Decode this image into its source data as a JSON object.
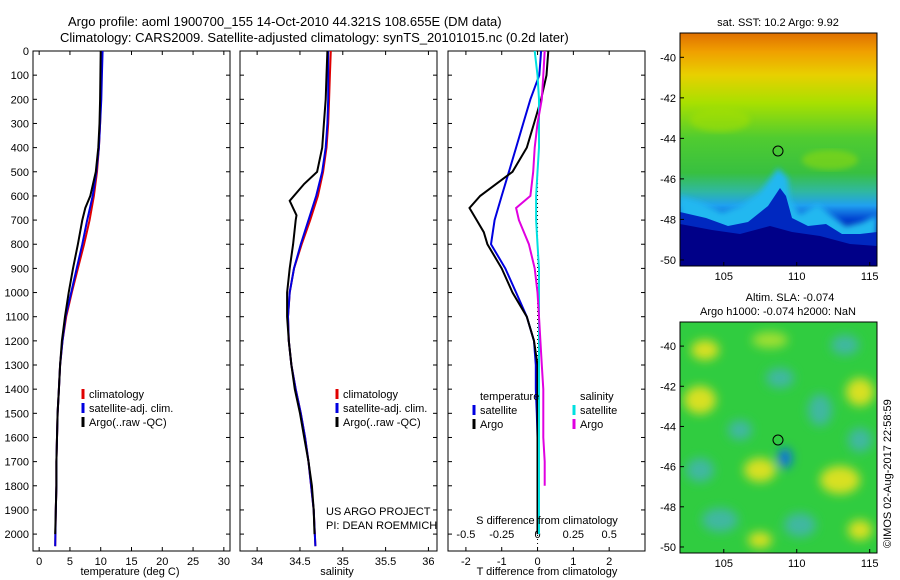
{
  "header": {
    "line1": "Argo profile: aoml 1900700_155 14-Oct-2010 44.321S 108.655E (DM data)",
    "line2": "Climatology: CARS2009. Satellite-adjusted climatology: synTS_20101015.nc (0.2d later)"
  },
  "colors": {
    "climatology": "#e00000",
    "satellite": "#0000e0",
    "argo": "#000000",
    "salinity_sat": "#00e0e0",
    "salinity_argo": "#e000e0"
  },
  "depth_ticks": [
    0,
    100,
    200,
    300,
    400,
    500,
    600,
    700,
    800,
    900,
    1000,
    1100,
    1200,
    1300,
    1400,
    1500,
    1600,
    1700,
    1800,
    1900,
    2000
  ],
  "annotation": {
    "line1": "US ARGO PROJECT",
    "line2": "PI: DEAN ROEMMICH"
  },
  "timestamp": "©IMOS 02-Aug-2017 22:58:59",
  "sst_title": "sat. SST: 10.2 Argo: 9.92",
  "sla_title1": "Altim. SLA: -0.074",
  "sla_title2": "Argo h1000: -0.074 h2000: NaN",
  "chart_data": [
    {
      "type": "line",
      "xlabel": "temperature (deg C)",
      "ylabel": "",
      "xlim": [
        -1,
        31
      ],
      "ylim": [
        2070,
        0
      ],
      "xticks": [
        0,
        5,
        10,
        15,
        20,
        25,
        30
      ],
      "legend": [
        "climatology",
        "satellite-adj. clim.",
        "Argo(..raw -QC)"
      ],
      "legend_placement": "bottom-center",
      "series": [
        {
          "name": "climatology",
          "color": "#e00000",
          "depth": [
            0,
            100,
            200,
            300,
            400,
            500,
            600,
            700,
            800,
            900,
            1000,
            1100,
            1200,
            1300,
            1400,
            1500,
            1600,
            1700,
            1800,
            1900,
            2050
          ],
          "values": [
            10.2,
            10.1,
            10.0,
            9.9,
            9.7,
            9.4,
            8.9,
            8.2,
            7.3,
            6.3,
            5.3,
            4.4,
            3.8,
            3.4,
            3.2,
            3.0,
            2.9,
            2.8,
            2.8,
            2.7,
            2.6
          ]
        },
        {
          "name": "satellite-adj. clim.",
          "color": "#0000e0",
          "depth": [
            0,
            100,
            200,
            300,
            400,
            500,
            600,
            700,
            800,
            900,
            1000,
            1100,
            1200,
            1300,
            1400,
            1500,
            1600,
            1700,
            1800,
            1900,
            2050
          ],
          "values": [
            10.3,
            10.2,
            10.1,
            9.9,
            9.7,
            9.3,
            8.7,
            7.8,
            7.0,
            6.1,
            5.2,
            4.3,
            3.8,
            3.4,
            3.2,
            3.0,
            2.9,
            2.8,
            2.8,
            2.7,
            2.6
          ]
        },
        {
          "name": "Argo(..raw -QC)",
          "color": "#000000",
          "depth": [
            0,
            100,
            200,
            300,
            400,
            500,
            600,
            650,
            700,
            800,
            900,
            1000,
            1100,
            1200,
            1300,
            1400,
            1500,
            1600,
            1700,
            1800,
            1900,
            2000
          ],
          "values": [
            10.0,
            9.95,
            9.9,
            9.8,
            9.6,
            9.2,
            8.3,
            7.5,
            7.0,
            6.3,
            5.5,
            4.8,
            4.2,
            3.7,
            3.4,
            3.2,
            3.0,
            2.9,
            2.8,
            2.8,
            2.7,
            2.6
          ]
        }
      ]
    },
    {
      "type": "line",
      "xlabel": "salinity",
      "ylabel": "",
      "xlim": [
        33.8,
        36.1
      ],
      "ylim": [
        2070,
        0
      ],
      "xticks": [
        34,
        34.5,
        35,
        35.5,
        36
      ],
      "legend": [
        "climatology",
        "satellite-adj. clim.",
        "Argo(..raw -QC)"
      ],
      "legend_placement": "bottom-right",
      "series": [
        {
          "name": "climatology",
          "color": "#e00000",
          "depth": [
            0,
            100,
            200,
            300,
            400,
            500,
            600,
            700,
            800,
            900,
            1000,
            1100,
            1200,
            1300,
            1400,
            1500,
            1600,
            1700,
            1800,
            1900,
            2050
          ],
          "values": [
            34.86,
            34.85,
            34.84,
            34.83,
            34.81,
            34.77,
            34.71,
            34.62,
            34.52,
            34.43,
            34.38,
            34.36,
            34.37,
            34.4,
            34.45,
            34.51,
            34.56,
            34.6,
            34.63,
            34.66,
            34.68
          ]
        },
        {
          "name": "satellite-adj. clim.",
          "color": "#0000e0",
          "depth": [
            0,
            100,
            200,
            300,
            400,
            500,
            600,
            700,
            800,
            900,
            1000,
            1100,
            1200,
            1300,
            1400,
            1500,
            1600,
            1700,
            1800,
            1900,
            2050
          ],
          "values": [
            34.83,
            34.83,
            34.83,
            34.82,
            34.8,
            34.76,
            34.69,
            34.6,
            34.51,
            34.43,
            34.38,
            34.36,
            34.37,
            34.4,
            34.45,
            34.51,
            34.56,
            34.6,
            34.63,
            34.66,
            34.68
          ]
        },
        {
          "name": "Argo(..raw -QC)",
          "color": "#000000",
          "depth": [
            0,
            100,
            200,
            300,
            400,
            500,
            550,
            620,
            680,
            700,
            800,
            900,
            1000,
            1100,
            1200,
            1300,
            1400,
            1500,
            1600,
            1700,
            1800,
            1900,
            2000
          ],
          "values": [
            34.82,
            34.81,
            34.8,
            34.78,
            34.76,
            34.7,
            34.55,
            34.38,
            34.46,
            34.45,
            34.42,
            34.38,
            34.35,
            34.35,
            34.37,
            34.4,
            34.44,
            34.5,
            34.55,
            34.6,
            34.64,
            34.66,
            34.67
          ]
        }
      ]
    },
    {
      "type": "line",
      "xlabel": "T difference from climatology",
      "xlabel_top": "S difference from climatology",
      "ylabel": "",
      "xlim": [
        -2.5,
        3.0
      ],
      "ylim": [
        2070,
        0
      ],
      "xticks": [
        -2,
        -1,
        0,
        1,
        2
      ],
      "xticks_top": [
        "-0.5",
        "-0.25",
        "0",
        "0.25",
        "0.5"
      ],
      "legend_temperature": {
        "title": "temperature",
        "items": [
          "satellite",
          "Argo"
        ]
      },
      "legend_salinity": {
        "title": "salinity",
        "items": [
          "satellite",
          "Argo"
        ]
      },
      "legend_placement": "bottom",
      "series": [
        {
          "name": "satellite",
          "color": "#0000e0",
          "depth": [
            0,
            100,
            200,
            300,
            400,
            500,
            600,
            700,
            800,
            900,
            1000,
            1100,
            1200,
            1300,
            1400,
            1500,
            1600,
            1700,
            1800,
            1900,
            2000
          ],
          "values": [
            0.1,
            0.05,
            -0.2,
            -0.4,
            -0.6,
            -0.8,
            -1.0,
            -1.2,
            -1.3,
            -0.9,
            -0.6,
            -0.3,
            -0.1,
            -0.05,
            -0.05,
            -0.02,
            0,
            0,
            0,
            0,
            0
          ]
        },
        {
          "name": "Argo",
          "color": "#000000",
          "depth": [
            0,
            100,
            200,
            300,
            400,
            500,
            600,
            650,
            700,
            750,
            800,
            900,
            1000,
            1100,
            1200,
            1300,
            1400,
            1500,
            1600,
            1700,
            1800,
            1900,
            2000
          ],
          "values": [
            0.3,
            0.25,
            0.1,
            -0.1,
            -0.3,
            -0.7,
            -1.6,
            -1.9,
            -1.7,
            -1.5,
            -1.4,
            -1.0,
            -0.7,
            -0.3,
            -0.1,
            0,
            0,
            0,
            0,
            0,
            0,
            0,
            0
          ]
        },
        {
          "name": "satellite",
          "color": "#00e0e0",
          "depth": [
            0,
            100,
            200,
            300,
            400,
            500,
            600,
            700,
            800,
            900,
            1000,
            1100,
            1200,
            1300,
            1400,
            1500,
            1600,
            1700,
            1800,
            1900,
            2000
          ],
          "values": [
            -0.02,
            0.0,
            0.01,
            0.01,
            0.01,
            0.0,
            -0.01,
            -0.01,
            0.0,
            0.01,
            0.01,
            0.01,
            0.01,
            0.01,
            0.01,
            0.01,
            0.01,
            0.01,
            0.01,
            0.01,
            0.01
          ]
        },
        {
          "name": "Argo",
          "color": "#e000e0",
          "depth": [
            0,
            100,
            200,
            300,
            400,
            500,
            600,
            650,
            700,
            800,
            900,
            1000,
            1100,
            1200,
            1300,
            1400,
            1500,
            1600,
            1700,
            1800
          ],
          "values": [
            0.05,
            0.04,
            0.03,
            0.0,
            -0.02,
            -0.03,
            -0.05,
            -0.15,
            -0.13,
            -0.06,
            -0.02,
            0.0,
            0.01,
            0.02,
            0.03,
            0.04,
            0.04,
            0.04,
            0.05,
            0.05
          ]
        }
      ]
    },
    {
      "type": "heatmap",
      "title": "sat. SST: 10.2 Argo: 9.92",
      "xticks": [
        105,
        110,
        115
      ],
      "yticks": [
        -40,
        -42,
        -44,
        -46,
        -48,
        -50
      ],
      "xlim": [
        102,
        115.5
      ],
      "ylim": [
        -50.3,
        -38.8
      ],
      "marker": {
        "lon": 108.655,
        "lat": -44.321
      }
    },
    {
      "type": "heatmap",
      "title": "Altim. SLA: -0.074 / Argo h1000: -0.074 h2000: NaN",
      "xticks": [
        105,
        110,
        115
      ],
      "yticks": [
        -40,
        -42,
        -44,
        -46,
        -48,
        -50
      ],
      "xlim": [
        102,
        115.5
      ],
      "ylim": [
        -50.3,
        -38.8
      ],
      "marker": {
        "lon": 108.655,
        "lat": -44.321
      }
    }
  ]
}
